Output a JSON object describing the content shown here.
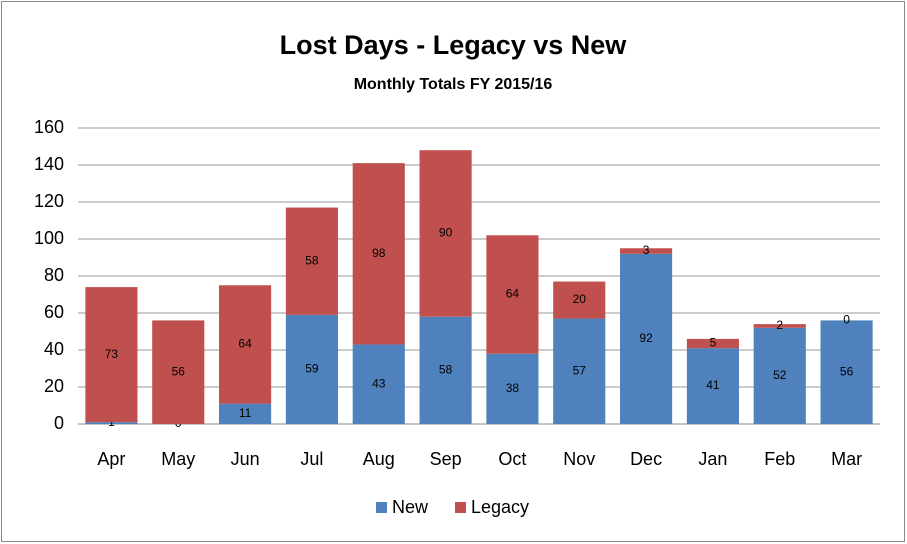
{
  "chart_data": {
    "type": "stacked_bar",
    "title": "Lost Days - Legacy vs New",
    "subtitle": "Monthly Totals FY 2015/16",
    "categories": [
      "Apr",
      "May",
      "Jun",
      "Jul",
      "Aug",
      "Sep",
      "Oct",
      "Nov",
      "Dec",
      "Jan",
      "Feb",
      "Mar"
    ],
    "series": [
      {
        "name": "New",
        "color": "#4f81bd",
        "values": [
          1,
          0,
          11,
          59,
          43,
          58,
          38,
          57,
          92,
          41,
          52,
          56
        ]
      },
      {
        "name": "Legacy",
        "color": "#c0504d",
        "values": [
          73,
          56,
          64,
          58,
          98,
          90,
          64,
          20,
          3,
          5,
          2,
          0
        ]
      }
    ],
    "ylim": [
      0,
      160
    ],
    "yticks": [
      0,
      20,
      40,
      60,
      80,
      100,
      120,
      140,
      160
    ],
    "grid": true,
    "legend": "bottom"
  }
}
